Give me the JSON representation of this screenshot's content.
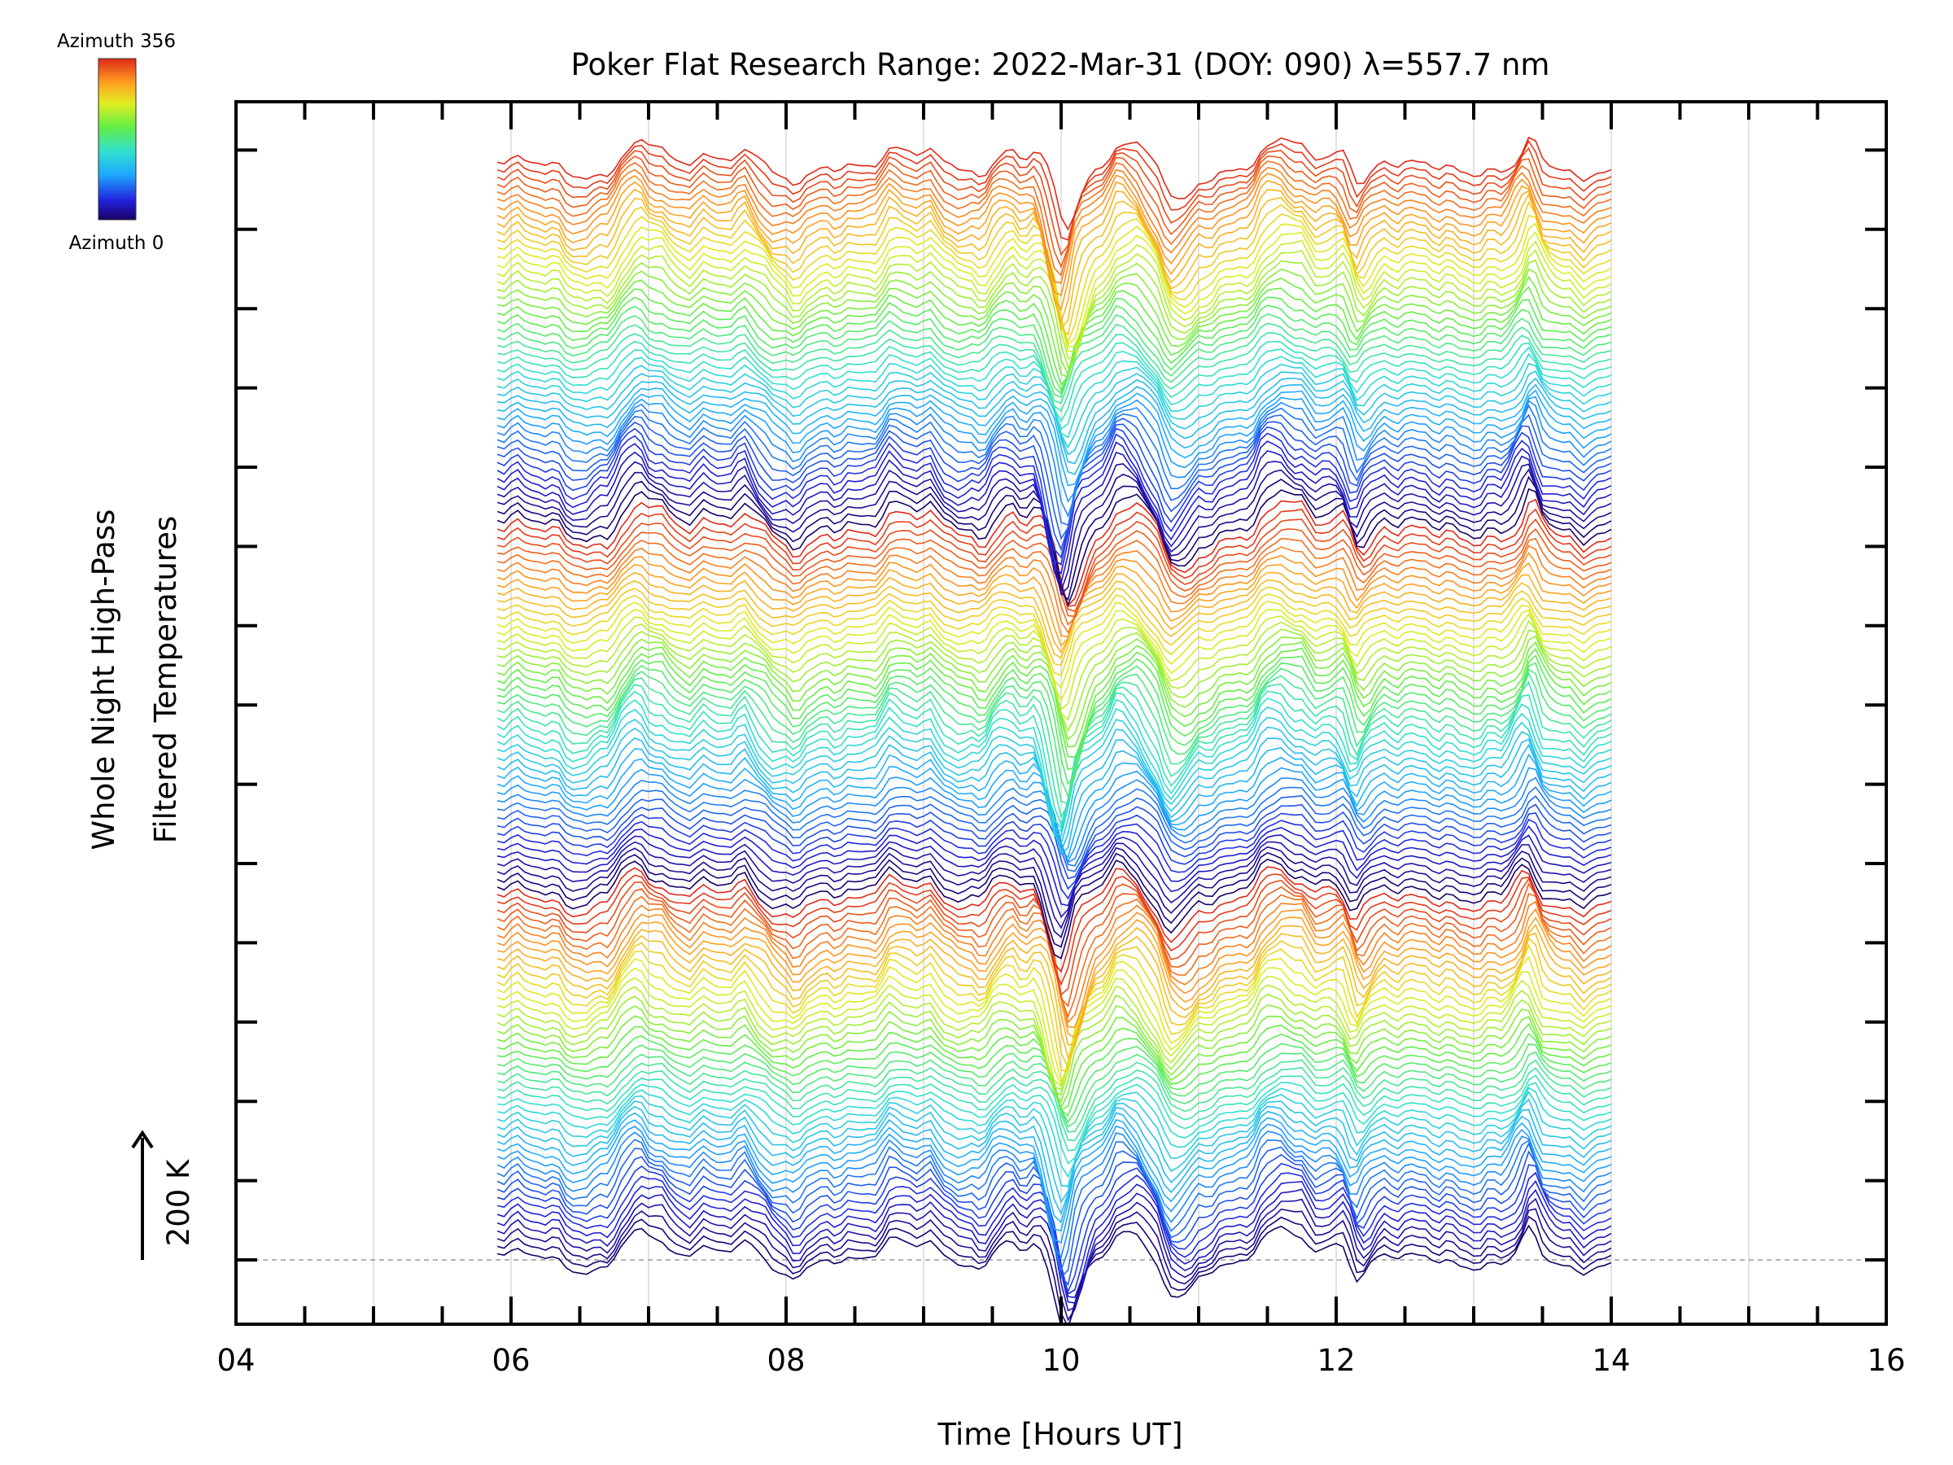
{
  "chart_data": {
    "type": "line",
    "title": "Poker Flat Research Range: 2022-Mar-31 (DOY: 090) λ=557.7 nm",
    "xlabel": "Time [Hours UT]",
    "ylabel_line1": "Whole Night High-Pass",
    "ylabel_line2": "Filtered Temperatures",
    "scale_label": "200 K",
    "scale_value_K": 200,
    "xlim": [
      4,
      16
    ],
    "x_ticks": [
      "04",
      "06",
      "08",
      "10",
      "12",
      "14",
      "16"
    ],
    "x_start": 5.9,
    "x_end": 14.0,
    "series_count": 138,
    "azimuth_range": [
      0,
      356
    ],
    "colorbar": {
      "top_label": "Azimuth 356",
      "bottom_label": "Azimuth 0",
      "colormap": "rainbow"
    },
    "grid": true,
    "features": [
      {
        "label": "strong trough",
        "x": 10.0
      },
      {
        "label": "peak",
        "x": 7.0
      },
      {
        "label": "peak",
        "x": 8.8
      },
      {
        "label": "peak",
        "x": 11.6
      },
      {
        "label": "peak",
        "x": 13.4
      }
    ]
  }
}
